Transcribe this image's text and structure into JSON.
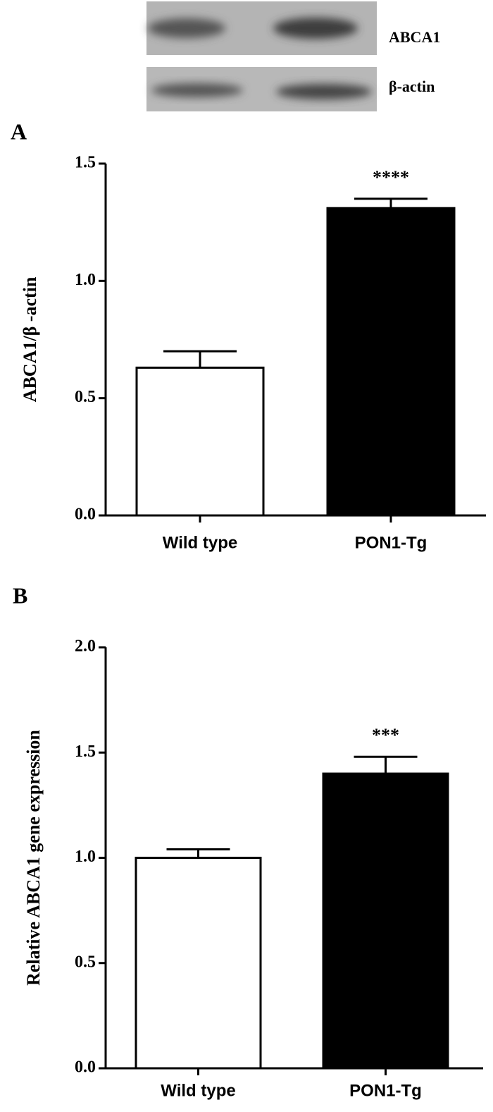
{
  "blot": {
    "labels": [
      "ABCA1",
      "β-actin"
    ]
  },
  "chart_data": [
    {
      "type": "bar",
      "panel_label": "A",
      "ylabel": "ABCA1/β -actin",
      "categories": [
        "Wild type",
        "PON1-Tg"
      ],
      "values": [
        0.63,
        1.31
      ],
      "errors": [
        0.07,
        0.04
      ],
      "colors": [
        "#ffffff",
        "#000000"
      ],
      "value_annotations": [
        null,
        "****"
      ],
      "ylim": [
        0,
        1.5
      ],
      "yticks": [
        {
          "value": 0,
          "label": "0.0"
        },
        {
          "value": 0.5,
          "label": "0.5"
        },
        {
          "value": 1,
          "label": "1.0"
        },
        {
          "value": 1.5,
          "label": "1.5"
        }
      ]
    },
    {
      "type": "bar",
      "panel_label": "B",
      "ylabel": "Relative ABCA1 gene expression",
      "categories": [
        "Wild type",
        "PON1-Tg"
      ],
      "values": [
        1.0,
        1.4
      ],
      "errors": [
        0.04,
        0.08
      ],
      "colors": [
        "#ffffff",
        "#000000"
      ],
      "value_annotations": [
        null,
        "***"
      ],
      "ylim": [
        0,
        2
      ],
      "yticks": [
        {
          "value": 0,
          "label": "0.0"
        },
        {
          "value": 0.5,
          "label": "0.5"
        },
        {
          "value": 1,
          "label": "1.0"
        },
        {
          "value": 1.5,
          "label": "1.5"
        },
        {
          "value": 2,
          "label": "2.0"
        }
      ]
    }
  ]
}
